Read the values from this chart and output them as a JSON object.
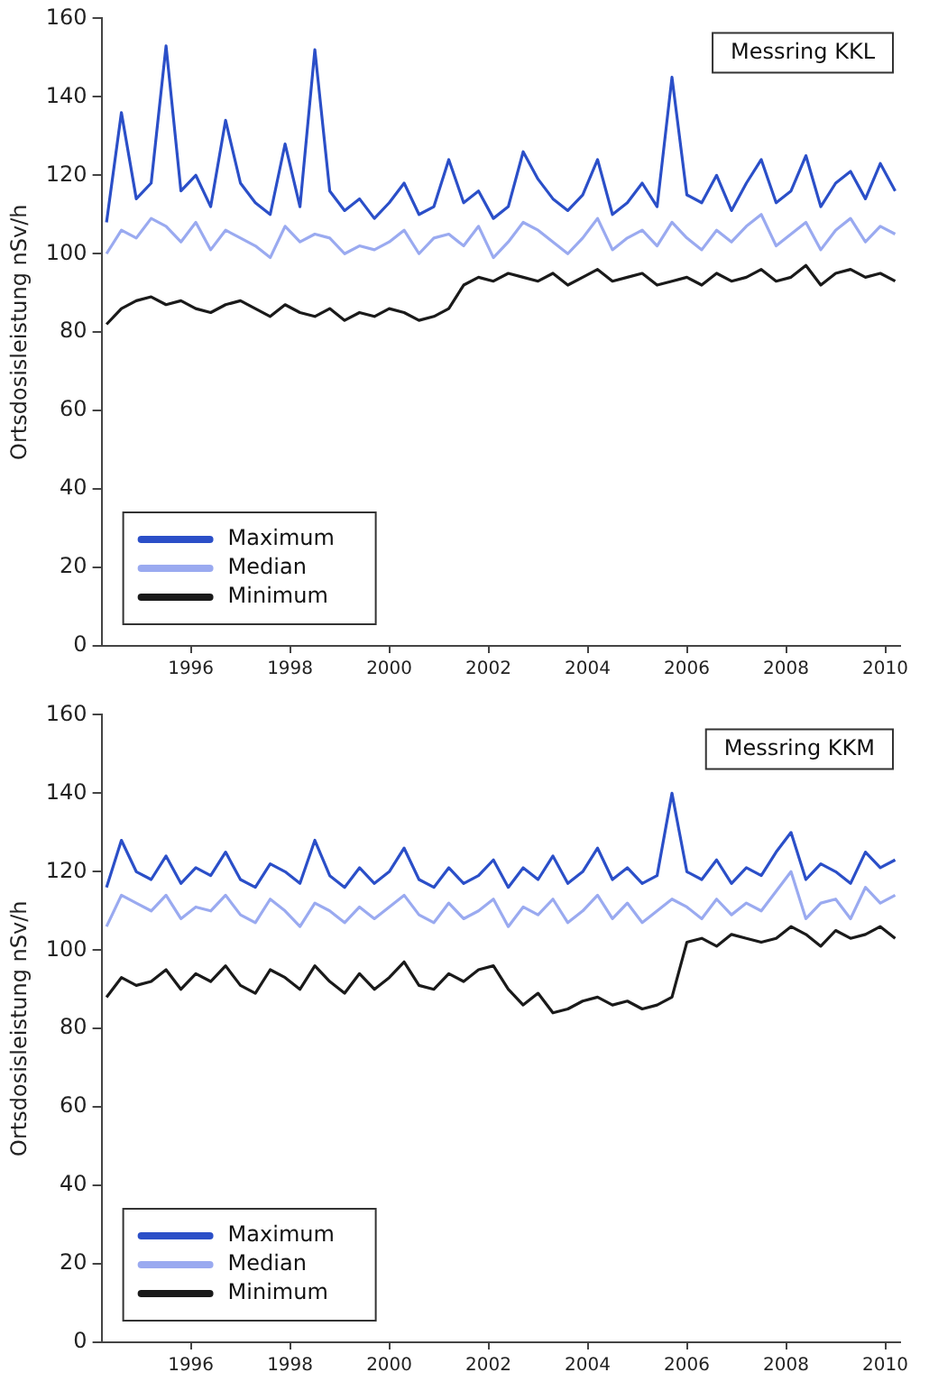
{
  "chart_data": [
    {
      "type": "line",
      "ylabel": "Ortsdosisleistung nSv/h",
      "annotations": [
        "Messring KKL"
      ],
      "legend": "bottom left",
      "marker": "none",
      "line_style": "solid",
      "grid": false,
      "xlim": [
        1994.7,
        2010.8
      ],
      "xticks": [
        {
          "value": 1996.5,
          "label": "1996"
        },
        {
          "value": 1998.5,
          "label": "1998"
        },
        {
          "value": 2000.5,
          "label": "2000"
        },
        {
          "value": 2002.5,
          "label": "2002"
        },
        {
          "value": 2004.5,
          "label": "2004"
        },
        {
          "value": 2006.5,
          "label": "2006"
        },
        {
          "value": 2008.5,
          "label": "2008"
        },
        {
          "value": 2010.5,
          "label": "2010"
        }
      ],
      "ylim": [
        0,
        160
      ],
      "yticks": [
        0,
        20,
        40,
        60,
        80,
        100,
        120,
        140,
        160
      ],
      "x": [
        1994.8,
        1995.1,
        1995.4,
        1995.7,
        1996.0,
        1996.3,
        1996.6,
        1996.9,
        1997.2,
        1997.5,
        1997.8,
        1998.1,
        1998.4,
        1998.7,
        1999.0,
        1999.3,
        1999.6,
        1999.9,
        2000.2,
        2000.5,
        2000.8,
        2001.1,
        2001.4,
        2001.7,
        2002.0,
        2002.3,
        2002.6,
        2002.9,
        2003.2,
        2003.5,
        2003.8,
        2004.1,
        2004.4,
        2004.7,
        2005.0,
        2005.3,
        2005.6,
        2005.9,
        2006.2,
        2006.5,
        2006.8,
        2007.1,
        2007.4,
        2007.7,
        2008.0,
        2008.3,
        2008.6,
        2008.9,
        2009.2,
        2009.5,
        2009.8,
        2010.1,
        2010.4,
        2010.7
      ],
      "series": [
        {
          "name": "Maximum",
          "color": "#2b4fc8",
          "values": [
            108,
            136,
            114,
            118,
            153,
            116,
            120,
            112,
            134,
            118,
            113,
            110,
            128,
            112,
            152,
            116,
            111,
            114,
            109,
            113,
            118,
            110,
            112,
            124,
            113,
            116,
            109,
            112,
            126,
            119,
            114,
            111,
            115,
            124,
            110,
            113,
            118,
            112,
            145,
            115,
            113,
            120,
            111,
            118,
            124,
            113,
            116,
            125,
            112,
            118,
            121,
            114,
            123,
            116
          ]
        },
        {
          "name": "Median",
          "color": "#9aaaf0",
          "values": [
            100,
            106,
            104,
            109,
            107,
            103,
            108,
            101,
            106,
            104,
            102,
            99,
            107,
            103,
            105,
            104,
            100,
            102,
            101,
            103,
            106,
            100,
            104,
            105,
            102,
            107,
            99,
            103,
            108,
            106,
            103,
            100,
            104,
            109,
            101,
            104,
            106,
            102,
            108,
            104,
            101,
            106,
            103,
            107,
            110,
            102,
            105,
            108,
            101,
            106,
            109,
            103,
            107,
            105
          ]
        },
        {
          "name": "Minimum",
          "color": "#1a1a1a",
          "values": [
            82,
            86,
            88,
            89,
            87,
            88,
            86,
            85,
            87,
            88,
            86,
            84,
            87,
            85,
            84,
            86,
            83,
            85,
            84,
            86,
            85,
            83,
            84,
            86,
            92,
            94,
            93,
            95,
            94,
            93,
            95,
            92,
            94,
            96,
            93,
            94,
            95,
            92,
            93,
            94,
            92,
            95,
            93,
            94,
            96,
            93,
            94,
            97,
            92,
            95,
            96,
            94,
            95,
            93
          ]
        }
      ]
    },
    {
      "type": "line",
      "ylabel": "Ortsdosisleistung nSv/h",
      "annotations": [
        "Messring KKM"
      ],
      "legend": "bottom left",
      "marker": "none",
      "line_style": "solid",
      "grid": false,
      "xlim": [
        1994.7,
        2010.8
      ],
      "xticks": [
        {
          "value": 1996.5,
          "label": "1996"
        },
        {
          "value": 1998.5,
          "label": "1998"
        },
        {
          "value": 2000.5,
          "label": "2000"
        },
        {
          "value": 2002.5,
          "label": "2002"
        },
        {
          "value": 2004.5,
          "label": "2004"
        },
        {
          "value": 2006.5,
          "label": "2006"
        },
        {
          "value": 2008.5,
          "label": "2008"
        },
        {
          "value": 2010.5,
          "label": "2010"
        }
      ],
      "ylim": [
        0,
        160
      ],
      "yticks": [
        0,
        20,
        40,
        60,
        80,
        100,
        120,
        140,
        160
      ],
      "x": [
        1994.8,
        1995.1,
        1995.4,
        1995.7,
        1996.0,
        1996.3,
        1996.6,
        1996.9,
        1997.2,
        1997.5,
        1997.8,
        1998.1,
        1998.4,
        1998.7,
        1999.0,
        1999.3,
        1999.6,
        1999.9,
        2000.2,
        2000.5,
        2000.8,
        2001.1,
        2001.4,
        2001.7,
        2002.0,
        2002.3,
        2002.6,
        2002.9,
        2003.2,
        2003.5,
        2003.8,
        2004.1,
        2004.4,
        2004.7,
        2005.0,
        2005.3,
        2005.6,
        2005.9,
        2006.2,
        2006.5,
        2006.8,
        2007.1,
        2007.4,
        2007.7,
        2008.0,
        2008.3,
        2008.6,
        2008.9,
        2009.2,
        2009.5,
        2009.8,
        2010.1,
        2010.4,
        2010.7
      ],
      "series": [
        {
          "name": "Maximum",
          "color": "#2b4fc8",
          "values": [
            116,
            128,
            120,
            118,
            124,
            117,
            121,
            119,
            125,
            118,
            116,
            122,
            120,
            117,
            128,
            119,
            116,
            121,
            117,
            120,
            126,
            118,
            116,
            121,
            117,
            119,
            123,
            116,
            121,
            118,
            124,
            117,
            120,
            126,
            118,
            121,
            117,
            119,
            140,
            120,
            118,
            123,
            117,
            121,
            119,
            125,
            130,
            118,
            122,
            120,
            117,
            125,
            121,
            123
          ]
        },
        {
          "name": "Median",
          "color": "#9aaaf0",
          "values": [
            106,
            114,
            112,
            110,
            114,
            108,
            111,
            110,
            114,
            109,
            107,
            113,
            110,
            106,
            112,
            110,
            107,
            111,
            108,
            111,
            114,
            109,
            107,
            112,
            108,
            110,
            113,
            106,
            111,
            109,
            113,
            107,
            110,
            114,
            108,
            112,
            107,
            110,
            113,
            111,
            108,
            113,
            109,
            112,
            110,
            115,
            120,
            108,
            112,
            113,
            108,
            116,
            112,
            114
          ]
        },
        {
          "name": "Minimum",
          "color": "#1a1a1a",
          "values": [
            88,
            93,
            91,
            92,
            95,
            90,
            94,
            92,
            96,
            91,
            89,
            95,
            93,
            90,
            96,
            92,
            89,
            94,
            90,
            93,
            97,
            91,
            90,
            94,
            92,
            95,
            96,
            90,
            86,
            89,
            84,
            85,
            87,
            88,
            86,
            87,
            85,
            86,
            88,
            102,
            103,
            101,
            104,
            103,
            102,
            103,
            106,
            104,
            101,
            105,
            103,
            104,
            106,
            103
          ]
        }
      ]
    }
  ]
}
